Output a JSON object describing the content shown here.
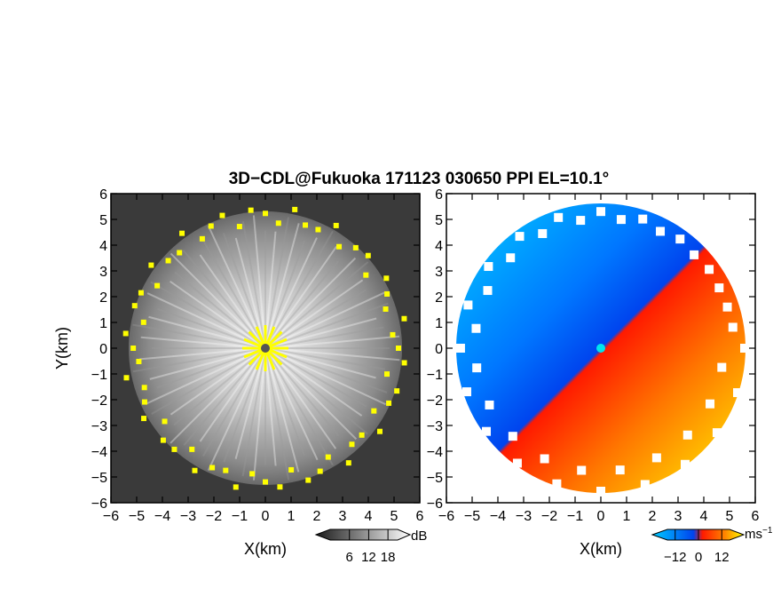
{
  "chart_data": [
    {
      "type": "heatmap",
      "title": "3D−CDL@Fukuoka 171123 030650 PPI EL=10.1°",
      "xlabel": "X(km)",
      "ylabel": "Y(km)",
      "xlim": [
        -6,
        6
      ],
      "ylim": [
        -6,
        6
      ],
      "xticks": [
        "−6",
        "−5",
        "−4",
        "−3",
        "−2",
        "−1",
        "0",
        "1",
        "2",
        "3",
        "4",
        "5",
        "6"
      ],
      "yticks": [
        "6",
        "5",
        "4",
        "3",
        "2",
        "1",
        "0",
        "−1",
        "−2",
        "−3",
        "−4",
        "−5",
        "−6"
      ],
      "field": "signal-to-noise ratio",
      "colorbar": {
        "unit": "dB",
        "ticks": [
          "6",
          "12",
          "18"
        ],
        "tick_values": [
          6,
          12,
          18
        ],
        "range": [
          0,
          21
        ],
        "colors": [
          "#1a1a1a",
          "#ffffff"
        ]
      },
      "data_extent_radius_km": 5.3,
      "yellow_flag_color": "#ffff00",
      "grid": false
    },
    {
      "type": "heatmap",
      "title": "",
      "xlabel": "X(km)",
      "ylabel": "",
      "xlim": [
        -6,
        6
      ],
      "ylim": [
        -6,
        6
      ],
      "xticks": [
        "−6",
        "−5",
        "−4",
        "−3",
        "−2",
        "−1",
        "0",
        "1",
        "2",
        "3",
        "4",
        "5",
        "6"
      ],
      "yticks": [
        "6",
        "5",
        "4",
        "3",
        "2",
        "1",
        "0",
        "−1",
        "−2",
        "−3",
        "−4",
        "−5",
        "−6"
      ],
      "field": "Doppler radial velocity",
      "colorbar": {
        "unit": "ms",
        "unit_exponent": "−1",
        "ticks": [
          "−12",
          "0",
          "12"
        ],
        "tick_values": [
          -12,
          0,
          12
        ],
        "range": [
          -16,
          16
        ],
        "colors": [
          "#00ccff",
          "#0066ff",
          "#ff0000",
          "#ff8800",
          "#ffff00"
        ]
      },
      "data_extent_radius_km": 5.5,
      "grid": false
    }
  ]
}
